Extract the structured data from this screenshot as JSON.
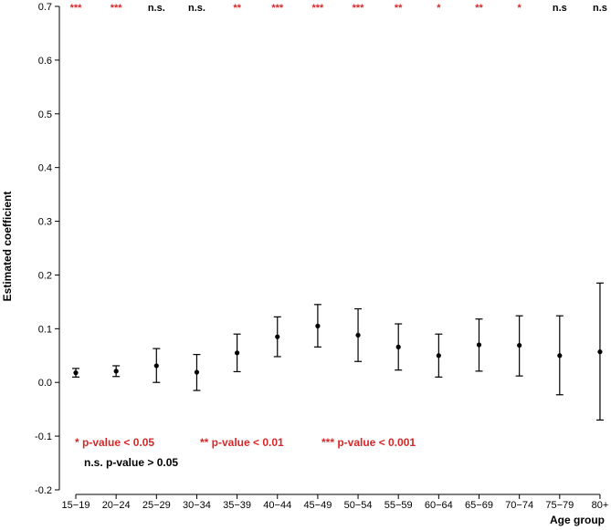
{
  "chart_data": {
    "type": "scatter",
    "xlabel": "Age group",
    "ylabel": "Estimated coefficient",
    "ylim": [
      -0.2,
      0.7
    ],
    "yticks": [
      "-0.2",
      "-0.1",
      "0.0",
      "0.1",
      "0.2",
      "0.3",
      "0.4",
      "0.5",
      "0.6",
      "0.7"
    ],
    "grid": false,
    "categories": [
      "15−19",
      "20−24",
      "25−29",
      "30−34",
      "35−39",
      "40−44",
      "45−49",
      "50−54",
      "55−59",
      "60−64",
      "65−69",
      "70−74",
      "75−79",
      "80+"
    ],
    "estimates": [
      0.018,
      0.021,
      0.031,
      0.019,
      0.055,
      0.085,
      0.105,
      0.088,
      0.066,
      0.05,
      0.07,
      0.069,
      0.05,
      0.057
    ],
    "ci_lower": [
      0.01,
      0.011,
      0.0,
      -0.015,
      0.02,
      0.048,
      0.066,
      0.039,
      0.023,
      0.01,
      0.021,
      0.012,
      -0.023,
      -0.07
    ],
    "ci_upper": [
      0.026,
      0.031,
      0.063,
      0.052,
      0.09,
      0.122,
      0.145,
      0.137,
      0.109,
      0.09,
      0.118,
      0.124,
      0.124,
      0.185
    ],
    "significance": [
      "***",
      "***",
      "n.s.",
      "n.s.",
      "**",
      "***",
      "***",
      "***",
      "**",
      "*",
      "**",
      "*",
      "n.s",
      "n.s"
    ],
    "legend": [
      {
        "label": "* p-value < 0.05",
        "color": "#d62728"
      },
      {
        "label": "** p-value < 0.01",
        "color": "#d62728"
      },
      {
        "label": "*** p-value < 0.001",
        "color": "#d62728"
      },
      {
        "label": "n.s. p-value > 0.05",
        "color": "#000000"
      }
    ],
    "colors": {
      "significant": "#d62728",
      "not_significant": "#000000",
      "points": "#000000"
    }
  }
}
